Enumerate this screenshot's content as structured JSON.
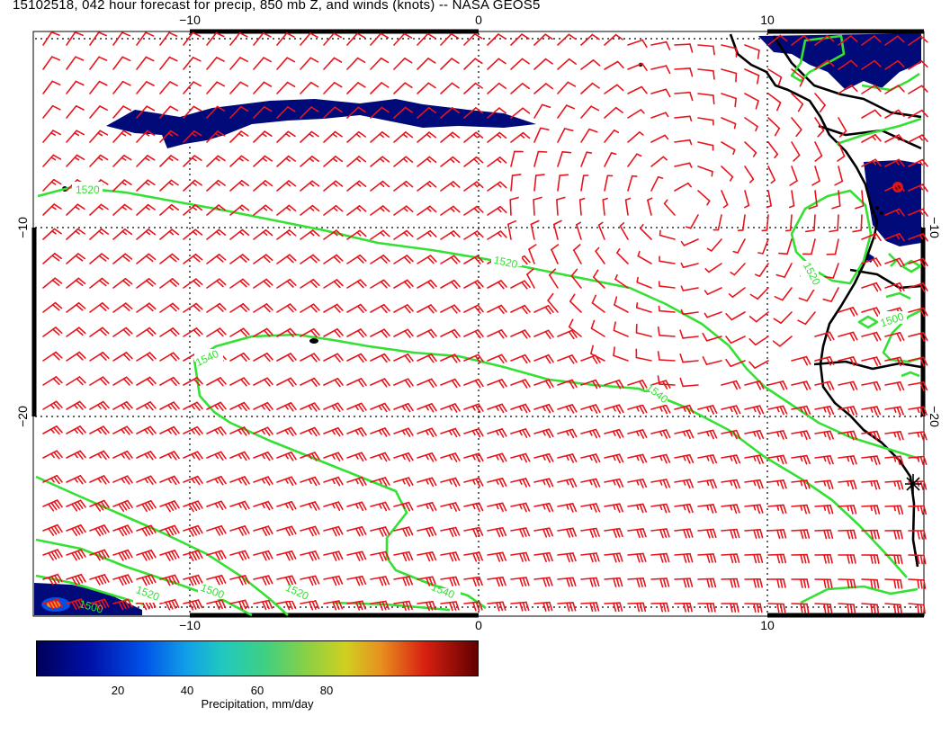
{
  "title": "15102518, 042 hour forecast for precip, 850 mb Z, and winds (knots) -- NASA GEOS5",
  "axes": {
    "top_ticks": [
      "−10",
      "0",
      "10"
    ],
    "bottom_ticks": [
      "−10",
      "0",
      "10"
    ],
    "left_ticks": [
      "−10",
      "−20"
    ],
    "right_ticks": [
      "−10",
      "−20"
    ]
  },
  "contour_labels": [
    "1520",
    "1520",
    "1520",
    "1500",
    "1540",
    "1540",
    "1540",
    "1500",
    "1520",
    "1520",
    "1500",
    "1500"
  ],
  "colorbar": {
    "ticks": [
      "20",
      "40",
      "60",
      "80"
    ],
    "label": "Precipitation, mm/day"
  },
  "colors": {
    "wind_barbs": "#e8141c",
    "contours": "#34e034",
    "coastline": "#000000",
    "precip_low": "#000a78"
  }
}
